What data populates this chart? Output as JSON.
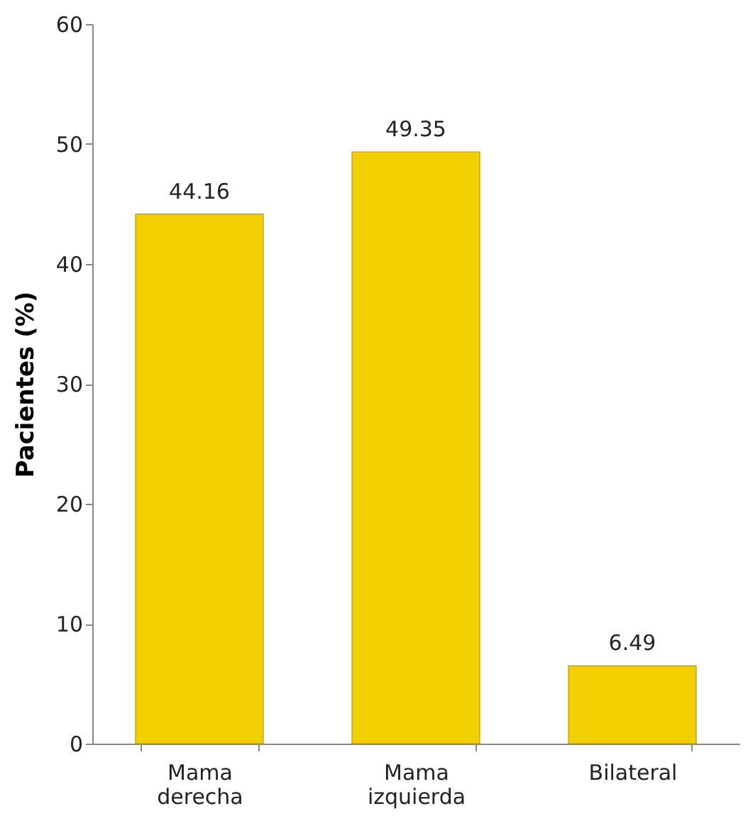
{
  "chart_data": {
    "type": "bar",
    "ylabel": "Pacientes (%)",
    "categories": [
      "Mama derecha",
      "Mama izquierda",
      "Bilateral"
    ],
    "values": [
      44.16,
      49.35,
      6.49
    ],
    "color": "#f2cf00",
    "ylim": [
      0,
      60
    ],
    "yticks": [
      0,
      10,
      20,
      30,
      40,
      50,
      60
    ],
    "data_labels": true,
    "grid": false
  }
}
